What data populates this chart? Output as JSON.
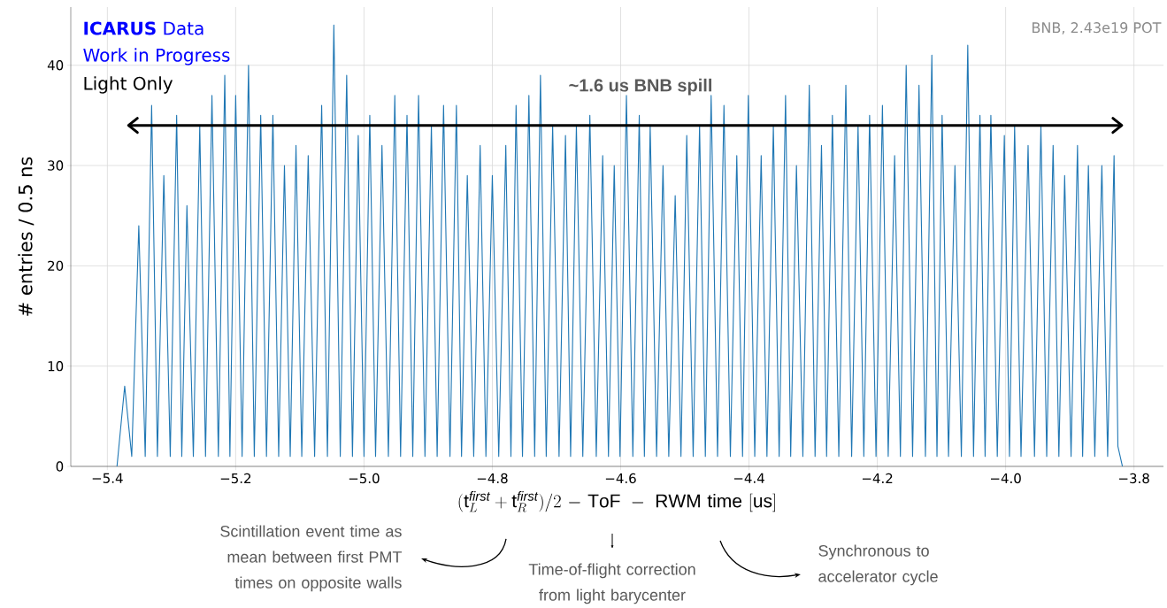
{
  "chart_data": {
    "type": "line",
    "xlabel": "(\\mathrm{t}^{\\mathit{first}}_{L}+\\mathrm{t}^{\\mathit{first}}_{R})/2\\mathrm{\\ -\\ ToF\\ -\\ RWM\\ time\\ [us]}",
    "ylabel": "# entries / 0.5 ns",
    "series": [
      {
        "color": "#1f77b4",
        "x": [
          -5.385,
          -5.373,
          -5.362,
          -5.351,
          -5.341,
          -5.331,
          -5.322,
          -5.312,
          -5.302,
          -5.292,
          -5.284,
          -5.276,
          -5.266,
          -5.256,
          -5.247,
          -5.237,
          -5.227,
          -5.217,
          -5.209,
          -5.2,
          -5.19,
          -5.18,
          -5.171,
          -5.161,
          -5.152,
          -5.142,
          -5.133,
          -5.124,
          -5.115,
          -5.106,
          -5.097,
          -5.087,
          -5.077,
          -5.066,
          -5.057,
          -5.047,
          -5.037,
          -5.027,
          -5.018,
          -5.009,
          -5.0,
          -4.991,
          -4.982,
          -4.972,
          -4.962,
          -4.952,
          -4.943,
          -4.933,
          -4.924,
          -4.915,
          -4.905,
          -4.895,
          -4.886,
          -4.876,
          -4.866,
          -4.856,
          -4.848,
          -4.839,
          -4.829,
          -4.819,
          -4.81,
          -4.8,
          -4.79,
          -4.779,
          -4.771,
          -4.763,
          -4.753,
          -4.743,
          -4.734,
          -4.725,
          -4.716,
          -4.706,
          -4.696,
          -4.686,
          -4.678,
          -4.669,
          -4.659,
          -4.648,
          -4.638,
          -4.628,
          -4.619,
          -4.61,
          -4.601,
          -4.591,
          -4.581,
          -4.571,
          -4.563,
          -4.554,
          -4.544,
          -4.534,
          -4.525,
          -4.515,
          -4.506,
          -4.497,
          -4.487,
          -4.477,
          -4.468,
          -4.459,
          -4.449,
          -4.439,
          -4.429,
          -4.419,
          -4.41,
          -4.401,
          -4.391,
          -4.381,
          -4.372,
          -4.362,
          -4.353,
          -4.343,
          -4.335,
          -4.326,
          -4.316,
          -4.306,
          -4.297,
          -4.287,
          -4.279,
          -4.27,
          -4.26,
          -4.249,
          -4.24,
          -4.23,
          -4.221,
          -4.212,
          -4.202,
          -4.192,
          -4.183,
          -4.173,
          -4.164,
          -4.155,
          -4.145,
          -4.135,
          -4.125,
          -4.115,
          -4.107,
          -4.099,
          -4.089,
          -4.079,
          -4.069,
          -4.059,
          -4.05,
          -4.04,
          -4.032,
          -4.023,
          -4.013,
          -4.002,
          -3.994,
          -3.986,
          -3.976,
          -3.965,
          -3.955,
          -3.945,
          -3.936,
          -3.926,
          -3.917,
          -3.908,
          -3.898,
          -3.888,
          -3.88,
          -3.871,
          -3.861,
          -3.85,
          -3.841,
          -3.831,
          -3.825,
          -3.818
        ],
        "values": [
          0,
          8,
          1,
          24,
          1,
          36,
          1,
          29,
          1,
          35,
          1,
          26,
          1,
          34,
          1,
          37,
          1,
          39,
          1,
          37,
          1,
          40,
          1,
          35,
          1,
          35,
          1,
          30,
          1,
          32,
          1,
          31,
          1,
          36,
          1,
          44,
          1,
          39,
          1,
          33,
          1,
          35,
          1,
          32,
          1,
          37,
          1,
          35,
          1,
          37,
          1,
          34,
          1,
          36,
          1,
          36,
          1,
          29,
          1,
          32,
          1,
          29,
          1,
          32,
          1,
          36,
          1,
          37,
          1,
          39,
          1,
          34,
          1,
          33,
          1,
          34,
          1,
          35,
          1,
          31,
          1,
          30,
          1,
          37,
          1,
          35,
          1,
          34,
          1,
          30,
          1,
          27,
          1,
          33,
          1,
          34,
          1,
          37,
          1,
          36,
          1,
          31,
          1,
          37,
          1,
          31,
          1,
          34,
          1,
          37,
          1,
          30,
          1,
          38,
          1,
          32,
          1,
          35,
          1,
          38,
          1,
          34,
          1,
          35,
          1,
          36,
          1,
          31,
          1,
          40,
          1,
          38,
          1,
          41,
          1,
          35,
          1,
          30,
          1,
          42,
          1,
          35,
          1,
          35,
          1,
          33,
          1,
          34,
          1,
          32,
          1,
          34,
          1,
          32,
          1,
          29,
          1,
          32,
          1,
          30,
          1,
          30,
          1,
          31,
          2,
          0
        ]
      },
      {
        "type": "line",
        "color": "#000000",
        "x": [
          -5.367,
          -3.819
        ],
        "values": [
          34,
          34
        ]
      }
    ],
    "xlim": [
      -5.457,
      -3.754
    ],
    "ylim": [
      0,
      45.8
    ],
    "xticks": [
      {
        "value": -5.4,
        "label": "−5.4"
      },
      {
        "value": -5.2,
        "label": "−5.2"
      },
      {
        "value": -5.0,
        "label": "−5.0"
      },
      {
        "value": -4.8,
        "label": "−4.8"
      },
      {
        "value": -4.6,
        "label": "−4.6"
      },
      {
        "value": -4.4,
        "label": "−4.4"
      },
      {
        "value": -4.2,
        "label": "−4.2"
      },
      {
        "value": -4.0,
        "label": "−4.0"
      },
      {
        "value": -3.8,
        "label": "−3.8"
      }
    ],
    "yticks": [
      0,
      10,
      20,
      30,
      40
    ],
    "grid": true,
    "annotations": [
      "**ICARUS** Data",
      "Work in Progress",
      "Light Only",
      "BNB, 2.43e19 POT",
      "~1.6 us BNB spill",
      "Scintillation event time as mean between first PMT times on opposite walls",
      "Time-of-flight correction from light barycenter",
      "Synchronous to accelerator cycle"
    ]
  }
}
